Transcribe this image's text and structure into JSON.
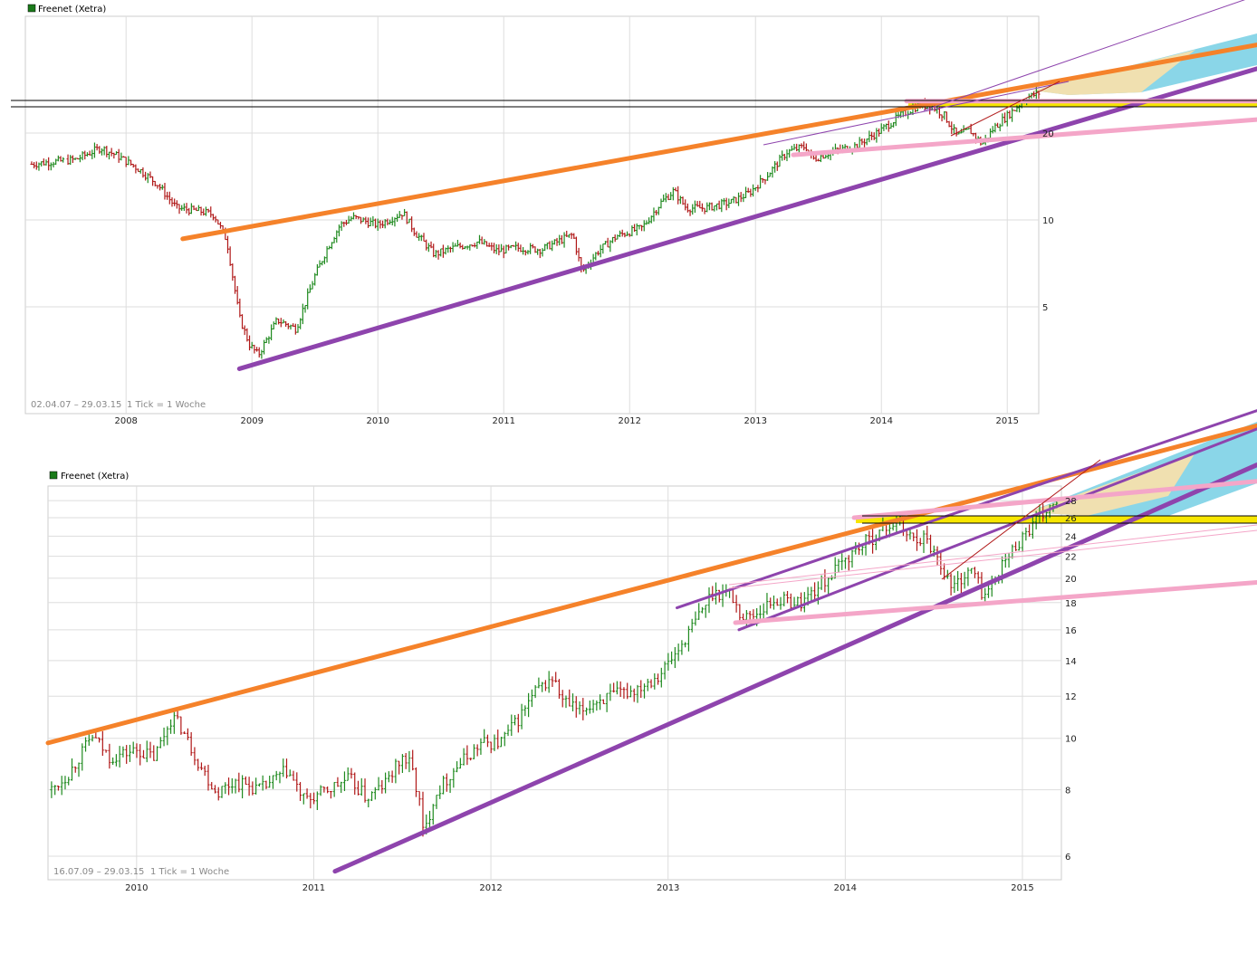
{
  "colors": {
    "up": "#1f8a1f",
    "down": "#b01818",
    "orange_trend": "#f5822a",
    "purple_trend": "#8e44ad",
    "pink_trend": "#f4a6c8",
    "yellow_band": "#f7e600",
    "beige_wedge": "#f0e0b0",
    "blue_wedge": "#8ad6e8",
    "grid": "#dddddd",
    "legend_box": "#1a7a1a"
  },
  "chart_data": [
    {
      "id": "top",
      "type": "candlestick",
      "legend": "Freenet (Xetra)",
      "date_range": "02.04.07 – 29.03.15",
      "tick_note": "1 Tick = 1 Woche",
      "scale": "log",
      "x_domain": [
        2007.2,
        2015.25
      ],
      "y_domain": [
        2.55,
        38
      ],
      "x_ticks": [
        "2008",
        "2009",
        "2010",
        "2011",
        "2012",
        "2013",
        "2014",
        "2015"
      ],
      "y_ticks": [
        "5",
        "10",
        "20"
      ],
      "grid": true,
      "anchors": [
        [
          2007.25,
          15.6
        ],
        [
          2007.4,
          15.9
        ],
        [
          2007.5,
          16.0
        ],
        [
          2007.6,
          16.2
        ],
        [
          2007.8,
          17.8
        ],
        [
          2007.95,
          16.5
        ],
        [
          2008.1,
          15.0
        ],
        [
          2008.25,
          13.3
        ],
        [
          2008.4,
          11.0
        ],
        [
          2008.6,
          10.7
        ],
        [
          2008.7,
          10.4
        ],
        [
          2008.8,
          8.5
        ],
        [
          2008.9,
          4.6
        ],
        [
          2008.98,
          3.7
        ],
        [
          2009.05,
          3.4
        ],
        [
          2009.2,
          4.5
        ],
        [
          2009.35,
          4.2
        ],
        [
          2009.5,
          6.4
        ],
        [
          2009.6,
          8.0
        ],
        [
          2009.7,
          9.6
        ],
        [
          2009.8,
          10.2
        ],
        [
          2010.0,
          9.6
        ],
        [
          2010.2,
          10.6
        ],
        [
          2010.3,
          9.0
        ],
        [
          2010.45,
          7.6
        ],
        [
          2010.6,
          8.0
        ],
        [
          2010.8,
          8.4
        ],
        [
          2010.95,
          7.8
        ],
        [
          2011.1,
          8.0
        ],
        [
          2011.3,
          7.9
        ],
        [
          2011.45,
          8.5
        ],
        [
          2011.55,
          8.9
        ],
        [
          2011.62,
          6.6
        ],
        [
          2011.75,
          7.8
        ],
        [
          2011.9,
          8.8
        ],
        [
          2012.1,
          9.4
        ],
        [
          2012.25,
          11.5
        ],
        [
          2012.35,
          12.6
        ],
        [
          2012.45,
          11.0
        ],
        [
          2012.6,
          11.0
        ],
        [
          2012.8,
          11.5
        ],
        [
          2012.95,
          12.4
        ],
        [
          2013.1,
          14.4
        ],
        [
          2013.25,
          17.2
        ],
        [
          2013.4,
          18.0
        ],
        [
          2013.45,
          16.2
        ],
        [
          2013.6,
          17.2
        ],
        [
          2013.8,
          18.1
        ],
        [
          2014.0,
          20.5
        ],
        [
          2014.15,
          23.0
        ],
        [
          2014.3,
          25.0
        ],
        [
          2014.4,
          24.8
        ],
        [
          2014.5,
          23.0
        ],
        [
          2014.6,
          19.5
        ],
        [
          2014.7,
          20.5
        ],
        [
          2014.8,
          18.3
        ],
        [
          2014.9,
          21.0
        ],
        [
          2015.05,
          24.0
        ],
        [
          2015.15,
          26.5
        ],
        [
          2015.25,
          27.5
        ]
      ],
      "trendlines": [
        {
          "name": "orange",
          "from": [
            2008.45,
            8.6
          ],
          "to": [
            2015.25,
            29.5
          ]
        },
        {
          "name": "purple",
          "from": [
            2008.9,
            3.05
          ],
          "to": [
            2015.25,
            20.0
          ]
        },
        {
          "name": "pink-upper",
          "from": [
            2014.2,
            25.8
          ],
          "to": [
            2015.25,
            25.8
          ]
        },
        {
          "name": "pink-lower",
          "from": [
            2013.3,
            16.8
          ],
          "to": [
            2015.25,
            19.5
          ]
        }
      ],
      "horizontal_levels": [
        25.0,
        26.2
      ]
    },
    {
      "id": "bottom",
      "type": "candlestick",
      "legend": "Freenet (Xetra)",
      "date_range": "16.07.09 – 29.03.15",
      "tick_note": "1 Tick = 1 Woche",
      "scale": "log",
      "x_domain": [
        2009.5,
        2015.22
      ],
      "y_domain": [
        5.55,
        31
      ],
      "x_ticks": [
        "2010",
        "2011",
        "2012",
        "2013",
        "2014",
        "2015"
      ],
      "y_ticks": [
        "6",
        "8",
        "10",
        "12",
        "14",
        "16",
        "18",
        "20",
        "22",
        "24",
        "26",
        "28"
      ],
      "grid": true,
      "anchors": [
        [
          2009.52,
          8.0
        ],
        [
          2009.62,
          8.6
        ],
        [
          2009.75,
          10.1
        ],
        [
          2009.85,
          9.2
        ],
        [
          2010.0,
          9.5
        ],
        [
          2010.1,
          9.2
        ],
        [
          2010.2,
          11.0
        ],
        [
          2010.25,
          10.5
        ],
        [
          2010.35,
          9.0
        ],
        [
          2010.45,
          7.9
        ],
        [
          2010.55,
          8.3
        ],
        [
          2010.7,
          8.0
        ],
        [
          2010.85,
          8.7
        ],
        [
          2010.95,
          7.6
        ],
        [
          2011.05,
          7.9
        ],
        [
          2011.2,
          8.4
        ],
        [
          2011.3,
          7.7
        ],
        [
          2011.4,
          8.2
        ],
        [
          2011.5,
          9.2
        ],
        [
          2011.55,
          8.9
        ],
        [
          2011.6,
          7.5
        ],
        [
          2011.62,
          6.5
        ],
        [
          2011.68,
          7.8
        ],
        [
          2011.8,
          8.8
        ],
        [
          2011.95,
          9.8
        ],
        [
          2012.05,
          9.8
        ],
        [
          2012.15,
          10.8
        ],
        [
          2012.25,
          12.2
        ],
        [
          2012.35,
          13.0
        ],
        [
          2012.4,
          11.8
        ],
        [
          2012.5,
          11.2
        ],
        [
          2012.6,
          11.8
        ],
        [
          2012.8,
          12.3
        ],
        [
          2012.95,
          13.2
        ],
        [
          2013.05,
          14.5
        ],
        [
          2013.15,
          16.5
        ],
        [
          2013.25,
          18.8
        ],
        [
          2013.35,
          18.8
        ],
        [
          2013.42,
          16.8
        ],
        [
          2013.5,
          17.2
        ],
        [
          2013.6,
          18.2
        ],
        [
          2013.75,
          18.0
        ],
        [
          2013.9,
          20.0
        ],
        [
          2014.05,
          22.5
        ],
        [
          2014.2,
          24.5
        ],
        [
          2014.3,
          25.8
        ],
        [
          2014.35,
          24.0
        ],
        [
          2014.45,
          23.8
        ],
        [
          2014.52,
          22.0
        ],
        [
          2014.6,
          19.2
        ],
        [
          2014.68,
          20.3
        ],
        [
          2014.72,
          20.8
        ],
        [
          2014.78,
          18.5
        ],
        [
          2014.82,
          19.2
        ],
        [
          2014.9,
          21.5
        ],
        [
          2015.0,
          24.0
        ],
        [
          2015.1,
          26.0
        ],
        [
          2015.2,
          27.8
        ]
      ],
      "trendlines": [
        {
          "name": "orange",
          "from": [
            2009.5,
            9.8
          ],
          "to": [
            2015.22,
            31.0
          ]
        },
        {
          "name": "purple",
          "from": [
            2011.12,
            5.62
          ],
          "to": [
            2015.22,
            22.5
          ]
        },
        {
          "name": "purple-upper",
          "from": [
            2013.05,
            17.6
          ],
          "to": [
            2015.22,
            31.0
          ]
        },
        {
          "name": "purple-mid",
          "from": [
            2013.4,
            16.0
          ],
          "to": [
            2015.22,
            27.5
          ]
        },
        {
          "name": "pink-upper",
          "from": [
            2014.05,
            26.0
          ],
          "to": [
            2015.22,
            28.2
          ]
        },
        {
          "name": "pink-lower",
          "from": [
            2013.38,
            16.5
          ],
          "to": [
            2015.22,
            18.4
          ]
        }
      ],
      "horizontal_levels": [
        25.5,
        26.8
      ]
    }
  ]
}
